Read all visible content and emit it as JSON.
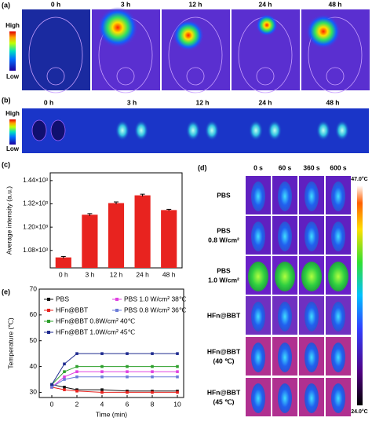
{
  "panel_a": {
    "label": "(a)",
    "times": [
      "0 h",
      "3 h",
      "12 h",
      "24 h",
      "48 h"
    ],
    "high": "High",
    "low": "Low"
  },
  "panel_b": {
    "label": "(b)",
    "times": [
      "0 h",
      "3 h",
      "12 h",
      "24 h",
      "48 h"
    ],
    "high": "High",
    "low": "Low"
  },
  "panel_c": {
    "label": "(c)",
    "chart_data": {
      "type": "bar",
      "y_label": "Average intensity (a.u.)",
      "categories": [
        "0 h",
        "3 h",
        "12 h",
        "24 h",
        "48 h"
      ],
      "values": [
        1044,
        1264,
        1324,
        1364,
        1288
      ],
      "errors": [
        5,
        6,
        6,
        6,
        4
      ],
      "color": "#e8231f",
      "ylim": [
        990,
        1480
      ],
      "yticks": [
        {
          "value": 1080,
          "label": "1.08×10³"
        },
        {
          "value": 1200,
          "label": "1.20×10³"
        },
        {
          "value": 1320,
          "label": "1.32×10³"
        },
        {
          "value": 1440,
          "label": "1.44×10³"
        }
      ]
    }
  },
  "panel_d": {
    "label": "(d)",
    "columns": [
      "0 s",
      "60 s",
      "360 s",
      "600 s"
    ],
    "rows": [
      [
        "PBS"
      ],
      [
        "PBS",
        "0.8 W/cm²"
      ],
      [
        "PBS",
        "1.0 W/cm²"
      ],
      [
        "HFn@BBT"
      ],
      [
        "HFn@BBT",
        "(40 ℃)"
      ],
      [
        "HFn@BBT",
        "(45 ℃)"
      ]
    ],
    "scale_max": "47.0°C",
    "scale_min": "24.0°C"
  },
  "panel_e": {
    "label": "(e)",
    "chart_data": {
      "type": "line",
      "x_label": "Time (min)",
      "y_label": "Temperature (℃)",
      "x": [
        0,
        1,
        2,
        4,
        6,
        8,
        10
      ],
      "xlim": [
        -1,
        10.5
      ],
      "xticks": [
        0,
        2,
        4,
        6,
        8,
        10
      ],
      "ylim": [
        28,
        70
      ],
      "yticks": [
        30,
        40,
        50,
        60,
        70
      ],
      "series": [
        {
          "name": "PBS",
          "color": "#111111",
          "values": [
            33,
            32,
            31,
            31,
            30.5,
            30.5,
            30.5
          ]
        },
        {
          "name": "HFn@BBT",
          "color": "#e8231f",
          "values": [
            32,
            31,
            30.5,
            30,
            30,
            30,
            30
          ]
        },
        {
          "name": "HFn@BBT 0.8W/cm² 40℃",
          "color": "#2ea02c",
          "values": [
            33,
            38,
            40,
            40,
            40,
            40,
            40
          ]
        },
        {
          "name": "HFn@BBT 1.0W/cm² 45℃",
          "color": "#1f2b8f",
          "values": [
            33,
            41,
            45,
            45,
            45,
            45,
            45
          ]
        },
        {
          "name": "PBS 1.0 W/cm² 38℃",
          "color": "#e040e0",
          "values": [
            32,
            36,
            38,
            38,
            38,
            38,
            38
          ]
        },
        {
          "name": "PBS 0.8 W/cm² 36℃",
          "color": "#6a7bd8",
          "values": [
            32,
            35,
            36,
            36,
            36,
            36,
            36
          ]
        }
      ]
    }
  }
}
